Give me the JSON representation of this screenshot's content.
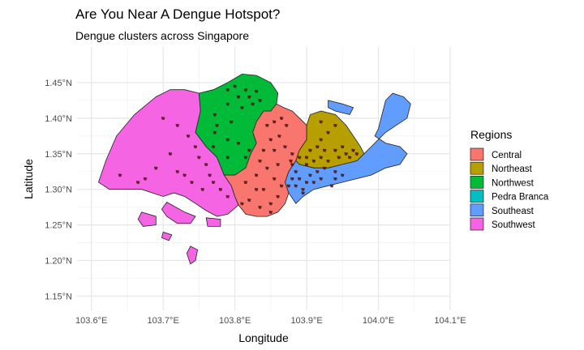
{
  "title": "Are You Near A Dengue Hotspot?",
  "subtitle": "Dengue clusters across Singapore",
  "chart_data": {
    "type": "map",
    "xlabel": "Longitude",
    "ylabel": "Latitude",
    "xlim": [
      103.58,
      104.1
    ],
    "ylim": [
      1.13,
      1.5
    ],
    "x_ticks": [
      {
        "value": 103.6,
        "label": "103.6°E"
      },
      {
        "value": 103.7,
        "label": "103.7°E"
      },
      {
        "value": 103.8,
        "label": "103.8°E"
      },
      {
        "value": 103.9,
        "label": "103.9°E"
      },
      {
        "value": 104.0,
        "label": "104.0°E"
      },
      {
        "value": 104.1,
        "label": "104.1°E"
      }
    ],
    "y_ticks": [
      {
        "value": 1.15,
        "label": "1.15°N"
      },
      {
        "value": 1.2,
        "label": "1.20°N"
      },
      {
        "value": 1.25,
        "label": "1.25°N"
      },
      {
        "value": 1.3,
        "label": "1.30°N"
      },
      {
        "value": 1.35,
        "label": "1.35°N"
      },
      {
        "value": 1.4,
        "label": "1.40°N"
      },
      {
        "value": 1.45,
        "label": "1.45°N"
      }
    ],
    "grid": true,
    "legend": {
      "title": "Regions",
      "position": "right",
      "entries": [
        {
          "name": "Central",
          "color": "#F8766D"
        },
        {
          "name": "Northeast",
          "color": "#B79F00"
        },
        {
          "name": "Northwest",
          "color": "#00BA38"
        },
        {
          "name": "Pedra Branca",
          "color": "#00BFC4"
        },
        {
          "name": "Southeast",
          "color": "#619CFF"
        },
        {
          "name": "Southwest",
          "color": "#F564E3"
        }
      ]
    },
    "regions": [
      {
        "name": "Southwest",
        "color": "#F564E3",
        "polygons": [
          [
            [
              103.61,
              1.31
            ],
            [
              103.62,
              1.34
            ],
            [
              103.635,
              1.375
            ],
            [
              103.66,
              1.405
            ],
            [
              103.69,
              1.43
            ],
            [
              103.71,
              1.44
            ],
            [
              103.73,
              1.44
            ],
            [
              103.75,
              1.435
            ],
            [
              103.752,
              1.41
            ],
            [
              103.745,
              1.38
            ],
            [
              103.76,
              1.36
            ],
            [
              103.775,
              1.345
            ],
            [
              103.785,
              1.32
            ],
            [
              103.795,
              1.305
            ],
            [
              103.8,
              1.29
            ],
            [
              103.805,
              1.278
            ],
            [
              103.79,
              1.265
            ],
            [
              103.775,
              1.262
            ],
            [
              103.76,
              1.27
            ],
            [
              103.745,
              1.28
            ],
            [
              103.73,
              1.29
            ],
            [
              103.715,
              1.295
            ],
            [
              103.7,
              1.29
            ],
            [
              103.685,
              1.295
            ],
            [
              103.67,
              1.3
            ],
            [
              103.655,
              1.3
            ],
            [
              103.64,
              1.3
            ],
            [
              103.625,
              1.3
            ],
            [
              103.61,
              1.31
            ]
          ],
          [
            [
              103.705,
              1.282
            ],
            [
              103.73,
              1.268
            ],
            [
              103.745,
              1.262
            ],
            [
              103.738,
              1.252
            ],
            [
              103.72,
              1.252
            ],
            [
              103.705,
              1.262
            ],
            [
              103.698,
              1.272
            ],
            [
              103.705,
              1.282
            ]
          ],
          [
            [
              103.67,
              1.268
            ],
            [
              103.69,
              1.262
            ],
            [
              103.69,
              1.25
            ],
            [
              103.672,
              1.248
            ],
            [
              103.665,
              1.258
            ],
            [
              103.67,
              1.268
            ]
          ],
          [
            [
              103.76,
              1.26
            ],
            [
              103.78,
              1.258
            ],
            [
              103.78,
              1.248
            ],
            [
              103.762,
              1.248
            ],
            [
              103.76,
              1.26
            ]
          ],
          [
            [
              103.738,
              1.22
            ],
            [
              103.748,
              1.215
            ],
            [
              103.745,
              1.2
            ],
            [
              103.738,
              1.195
            ],
            [
              103.733,
              1.21
            ],
            [
              103.738,
              1.22
            ]
          ],
          [
            [
              103.7,
              1.24
            ],
            [
              103.712,
              1.236
            ],
            [
              103.708,
              1.228
            ],
            [
              103.698,
              1.232
            ],
            [
              103.7,
              1.24
            ]
          ]
        ]
      },
      {
        "name": "Northwest",
        "color": "#00BA38",
        "polygons": [
          [
            [
              103.75,
              1.435
            ],
            [
              103.77,
              1.44
            ],
            [
              103.79,
              1.45
            ],
            [
              103.81,
              1.462
            ],
            [
              103.83,
              1.46
            ],
            [
              103.85,
              1.45
            ],
            [
              103.86,
              1.435
            ],
            [
              103.858,
              1.42
            ],
            [
              103.85,
              1.41
            ],
            [
              103.84,
              1.41
            ],
            [
              103.83,
              1.395
            ],
            [
              103.825,
              1.38
            ],
            [
              103.83,
              1.365
            ],
            [
              103.822,
              1.35
            ],
            [
              103.815,
              1.33
            ],
            [
              103.8,
              1.32
            ],
            [
              103.785,
              1.32
            ],
            [
              103.775,
              1.345
            ],
            [
              103.76,
              1.36
            ],
            [
              103.745,
              1.38
            ],
            [
              103.752,
              1.41
            ],
            [
              103.75,
              1.435
            ]
          ]
        ]
      },
      {
        "name": "Central",
        "color": "#F8766D",
        "polygons": [
          [
            [
              103.83,
              1.395
            ],
            [
              103.84,
              1.41
            ],
            [
              103.85,
              1.41
            ],
            [
              103.858,
              1.42
            ],
            [
              103.868,
              1.415
            ],
            [
              103.88,
              1.41
            ],
            [
              103.89,
              1.4
            ],
            [
              103.9,
              1.39
            ],
            [
              103.9,
              1.37
            ],
            [
              103.89,
              1.355
            ],
            [
              103.885,
              1.34
            ],
            [
              103.875,
              1.325
            ],
            [
              103.87,
              1.31
            ],
            [
              103.875,
              1.295
            ],
            [
              103.87,
              1.28
            ],
            [
              103.86,
              1.268
            ],
            [
              103.845,
              1.262
            ],
            [
              103.83,
              1.262
            ],
            [
              103.815,
              1.265
            ],
            [
              103.805,
              1.278
            ],
            [
              103.8,
              1.29
            ],
            [
              103.795,
              1.305
            ],
            [
              103.785,
              1.32
            ],
            [
              103.8,
              1.32
            ],
            [
              103.815,
              1.33
            ],
            [
              103.822,
              1.35
            ],
            [
              103.83,
              1.365
            ],
            [
              103.825,
              1.38
            ],
            [
              103.83,
              1.395
            ]
          ]
        ]
      },
      {
        "name": "Northeast",
        "color": "#B79F00",
        "polygons": [
          [
            [
              103.9,
              1.39
            ],
            [
              103.905,
              1.405
            ],
            [
              103.92,
              1.41
            ],
            [
              103.94,
              1.405
            ],
            [
              103.955,
              1.39
            ],
            [
              103.965,
              1.375
            ],
            [
              103.975,
              1.36
            ],
            [
              103.98,
              1.35
            ],
            [
              103.97,
              1.34
            ],
            [
              103.95,
              1.335
            ],
            [
              103.93,
              1.33
            ],
            [
              103.91,
              1.33
            ],
            [
              103.89,
              1.335
            ],
            [
              103.885,
              1.34
            ],
            [
              103.89,
              1.355
            ],
            [
              103.9,
              1.37
            ],
            [
              103.9,
              1.39
            ]
          ]
        ]
      },
      {
        "name": "Southeast",
        "color": "#619CFF",
        "polygons": [
          [
            [
              103.885,
              1.34
            ],
            [
              103.89,
              1.335
            ],
            [
              103.91,
              1.33
            ],
            [
              103.93,
              1.33
            ],
            [
              103.95,
              1.335
            ],
            [
              103.97,
              1.34
            ],
            [
              103.98,
              1.35
            ],
            [
              103.99,
              1.36
            ],
            [
              104.0,
              1.37
            ],
            [
              104.01,
              1.38
            ],
            [
              104.025,
              1.39
            ],
            [
              104.04,
              1.4
            ],
            [
              104.045,
              1.42
            ],
            [
              104.035,
              1.43
            ],
            [
              104.02,
              1.435
            ],
            [
              104.01,
              1.425
            ],
            [
              104.005,
              1.405
            ],
            [
              104.0,
              1.385
            ],
            [
              103.995,
              1.375
            ],
            [
              104.01,
              1.365
            ],
            [
              104.03,
              1.36
            ],
            [
              104.04,
              1.35
            ],
            [
              104.03,
              1.335
            ],
            [
              104.01,
              1.33
            ],
            [
              103.99,
              1.32
            ],
            [
              103.97,
              1.315
            ],
            [
              103.95,
              1.31
            ],
            [
              103.93,
              1.305
            ],
            [
              103.91,
              1.3
            ],
            [
              103.895,
              1.29
            ],
            [
              103.885,
              1.28
            ],
            [
              103.875,
              1.295
            ],
            [
              103.87,
              1.31
            ],
            [
              103.875,
              1.325
            ],
            [
              103.885,
              1.34
            ]
          ],
          [
            [
              103.93,
              1.425
            ],
            [
              103.95,
              1.42
            ],
            [
              103.965,
              1.415
            ],
            [
              103.96,
              1.405
            ],
            [
              103.94,
              1.41
            ],
            [
              103.93,
              1.415
            ],
            [
              103.93,
              1.425
            ]
          ]
        ]
      },
      {
        "name": "Pedra Branca",
        "color": "#00BFC4",
        "polygons": []
      }
    ],
    "clusters_color": "#5a1a1a",
    "clusters": [
      [
        103.79,
        1.44
      ],
      [
        103.8,
        1.445
      ],
      [
        103.815,
        1.44
      ],
      [
        103.83,
        1.438
      ],
      [
        103.805,
        1.43
      ],
      [
        103.82,
        1.43
      ],
      [
        103.79,
        1.42
      ],
      [
        103.81,
        1.415
      ],
      [
        103.825,
        1.42
      ],
      [
        103.835,
        1.425
      ],
      [
        103.772,
        1.405
      ],
      [
        103.775,
        1.39
      ],
      [
        103.795,
        1.395
      ],
      [
        103.772,
        1.38
      ],
      [
        103.79,
        1.37
      ],
      [
        103.805,
        1.365
      ],
      [
        103.77,
        1.36
      ],
      [
        103.79,
        1.345
      ],
      [
        103.815,
        1.345
      ],
      [
        103.82,
        1.355
      ],
      [
        103.845,
        1.39
      ],
      [
        103.855,
        1.395
      ],
      [
        103.865,
        1.4
      ],
      [
        103.872,
        1.39
      ],
      [
        103.85,
        1.37
      ],
      [
        103.862,
        1.375
      ],
      [
        103.84,
        1.355
      ],
      [
        103.855,
        1.355
      ],
      [
        103.835,
        1.34
      ],
      [
        103.87,
        1.36
      ],
      [
        103.88,
        1.35
      ],
      [
        103.878,
        1.34
      ],
      [
        103.86,
        1.335
      ],
      [
        103.845,
        1.33
      ],
      [
        103.83,
        1.32
      ],
      [
        103.855,
        1.315
      ],
      [
        103.865,
        1.305
      ],
      [
        103.86,
        1.29
      ],
      [
        103.85,
        1.28
      ],
      [
        103.84,
        1.3
      ],
      [
        103.83,
        1.3
      ],
      [
        103.815,
        1.31
      ],
      [
        103.82,
        1.285
      ],
      [
        103.835,
        1.275
      ],
      [
        103.85,
        1.268
      ],
      [
        103.81,
        1.28
      ],
      [
        103.88,
        1.335
      ],
      [
        103.885,
        1.325
      ],
      [
        103.89,
        1.315
      ],
      [
        103.88,
        1.315
      ],
      [
        103.885,
        1.305
      ],
      [
        103.895,
        1.3
      ],
      [
        103.9,
        1.31
      ],
      [
        103.905,
        1.32
      ],
      [
        103.91,
        1.31
      ],
      [
        103.92,
        1.315
      ],
      [
        103.915,
        1.325
      ],
      [
        103.9,
        1.335
      ],
      [
        103.89,
        1.345
      ],
      [
        103.9,
        1.345
      ],
      [
        103.91,
        1.34
      ],
      [
        103.92,
        1.345
      ],
      [
        103.93,
        1.34
      ],
      [
        103.925,
        1.33
      ],
      [
        103.94,
        1.325
      ],
      [
        103.94,
        1.315
      ],
      [
        103.95,
        1.32
      ],
      [
        103.935,
        1.305
      ],
      [
        103.875,
        1.305
      ],
      [
        103.895,
        1.295
      ],
      [
        103.905,
        1.355
      ],
      [
        103.915,
        1.36
      ],
      [
        103.92,
        1.37
      ],
      [
        103.93,
        1.38
      ],
      [
        103.94,
        1.355
      ],
      [
        103.95,
        1.36
      ],
      [
        103.955,
        1.35
      ],
      [
        103.96,
        1.345
      ],
      [
        103.965,
        1.355
      ],
      [
        103.97,
        1.35
      ],
      [
        103.945,
        1.345
      ],
      [
        103.925,
        1.355
      ],
      [
        103.94,
        1.39
      ],
      [
        103.92,
        1.395
      ],
      [
        103.7,
        1.4
      ],
      [
        103.72,
        1.39
      ],
      [
        103.735,
        1.375
      ],
      [
        103.745,
        1.36
      ],
      [
        103.75,
        1.345
      ],
      [
        103.76,
        1.335
      ],
      [
        103.765,
        1.32
      ],
      [
        103.77,
        1.31
      ],
      [
        103.78,
        1.3
      ],
      [
        103.79,
        1.29
      ],
      [
        103.755,
        1.3
      ],
      [
        103.74,
        1.31
      ],
      [
        103.73,
        1.32
      ],
      [
        103.72,
        1.325
      ],
      [
        103.71,
        1.35
      ],
      [
        103.69,
        1.33
      ],
      [
        103.675,
        1.315
      ],
      [
        103.665,
        1.31
      ],
      [
        103.64,
        1.32
      ]
    ]
  }
}
